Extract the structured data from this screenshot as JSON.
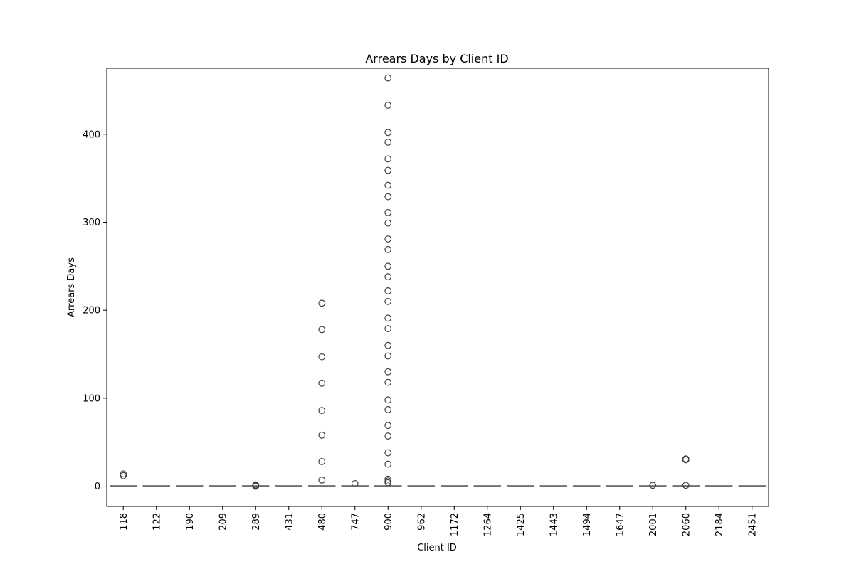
{
  "chart_data": {
    "type": "box",
    "title": "Arrears Days by Client ID",
    "xlabel": "Client ID",
    "ylabel": "Arrears Days",
    "ylim": [
      -23,
      475
    ],
    "yticks": [
      0,
      100,
      200,
      300,
      400
    ],
    "grid": false,
    "categories": [
      "118",
      "122",
      "190",
      "209",
      "289",
      "431",
      "480",
      "747",
      "900",
      "962",
      "1172",
      "1264",
      "1425",
      "1443",
      "1494",
      "1647",
      "2001",
      "2060",
      "2184",
      "2451"
    ],
    "series": [
      {
        "category": "118",
        "q1": 0,
        "median": 0,
        "q3": 0,
        "whisker_low": 0,
        "whisker_high": 0,
        "outliers": [
          12,
          14
        ]
      },
      {
        "category": "122",
        "q1": 0,
        "median": 0,
        "q3": 0,
        "whisker_low": 0,
        "whisker_high": 0,
        "outliers": []
      },
      {
        "category": "190",
        "q1": 0,
        "median": 0,
        "q3": 0,
        "whisker_low": 0,
        "whisker_high": 0,
        "outliers": []
      },
      {
        "category": "209",
        "q1": 0,
        "median": 0,
        "q3": 0,
        "whisker_low": 0,
        "whisker_high": 0,
        "outliers": []
      },
      {
        "category": "289",
        "q1": 0,
        "median": 0,
        "q3": 0,
        "whisker_low": 0,
        "whisker_high": 0,
        "outliers": [
          0,
          0.5,
          1,
          1.5
        ]
      },
      {
        "category": "431",
        "q1": 0,
        "median": 0,
        "q3": 0,
        "whisker_low": 0,
        "whisker_high": 0,
        "outliers": []
      },
      {
        "category": "480",
        "q1": 0,
        "median": 0,
        "q3": 0,
        "whisker_low": 0,
        "whisker_high": 0,
        "outliers": [
          7,
          28,
          58,
          86,
          117,
          147,
          178,
          208
        ]
      },
      {
        "category": "747",
        "q1": 0,
        "median": 0,
        "q3": 0,
        "whisker_low": 0,
        "whisker_high": 0,
        "outliers": [
          3
        ]
      },
      {
        "category": "900",
        "q1": 0,
        "median": 0,
        "q3": 0,
        "whisker_low": 0,
        "whisker_high": 0,
        "outliers": [
          4,
          6,
          8,
          25,
          38,
          57,
          69,
          87,
          98,
          118,
          130,
          148,
          160,
          179,
          191,
          210,
          222,
          238,
          250,
          269,
          281,
          299,
          311,
          329,
          342,
          359,
          372,
          391,
          402,
          433,
          464
        ]
      },
      {
        "category": "962",
        "q1": 0,
        "median": 0,
        "q3": 0,
        "whisker_low": 0,
        "whisker_high": 0,
        "outliers": []
      },
      {
        "category": "1172",
        "q1": 0,
        "median": 0,
        "q3": 0,
        "whisker_low": 0,
        "whisker_high": 0,
        "outliers": []
      },
      {
        "category": "1264",
        "q1": 0,
        "median": 0,
        "q3": 0,
        "whisker_low": 0,
        "whisker_high": 0,
        "outliers": []
      },
      {
        "category": "1425",
        "q1": 0,
        "median": 0,
        "q3": 0,
        "whisker_low": 0,
        "whisker_high": 0,
        "outliers": []
      },
      {
        "category": "1443",
        "q1": 0,
        "median": 0,
        "q3": 0,
        "whisker_low": 0,
        "whisker_high": 0,
        "outliers": []
      },
      {
        "category": "1494",
        "q1": 0,
        "median": 0,
        "q3": 0,
        "whisker_low": 0,
        "whisker_high": 0,
        "outliers": []
      },
      {
        "category": "1647",
        "q1": 0,
        "median": 0,
        "q3": 0,
        "whisker_low": 0,
        "whisker_high": 0,
        "outliers": []
      },
      {
        "category": "2001",
        "q1": 0,
        "median": 0,
        "q3": 0,
        "whisker_low": 0,
        "whisker_high": 0,
        "outliers": [
          1
        ]
      },
      {
        "category": "2060",
        "q1": 0,
        "median": 0,
        "q3": 0,
        "whisker_low": 0,
        "whisker_high": 0,
        "outliers": [
          1,
          30,
          31
        ]
      },
      {
        "category": "2184",
        "q1": 0,
        "median": 0,
        "q3": 0,
        "whisker_low": 0,
        "whisker_high": 0,
        "outliers": []
      },
      {
        "category": "2451",
        "q1": 0,
        "median": 0,
        "q3": 0,
        "whisker_low": 0,
        "whisker_high": 0,
        "outliers": []
      }
    ],
    "colors": {
      "box_fill": "#3a75b0",
      "line": "#3f3f3f",
      "marker_edge": "#3f3f3f",
      "axis": "#000000"
    }
  }
}
